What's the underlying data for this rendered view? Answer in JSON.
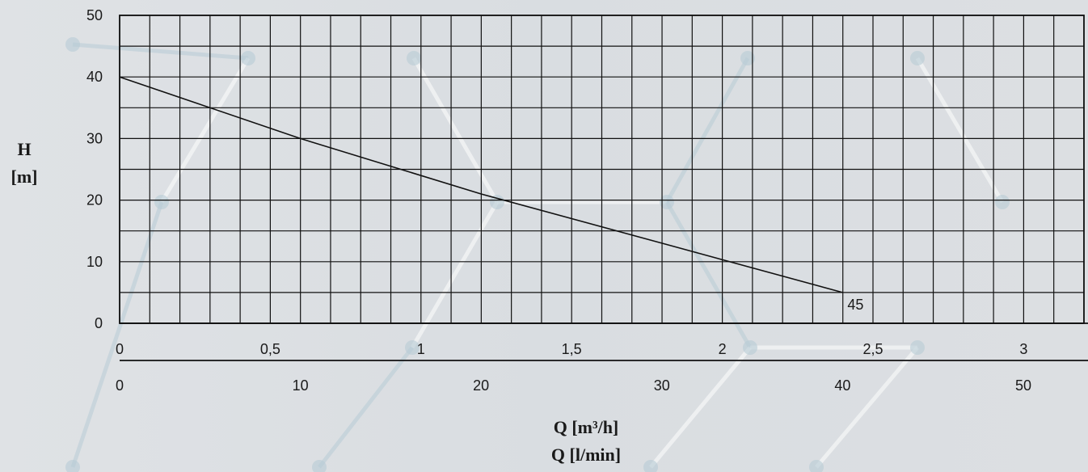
{
  "colors": {
    "background": "#dcdfe2",
    "grid": "#111111",
    "curve": "#111111",
    "decor": "#ffffff",
    "decor_blue": "#b8ccd6"
  },
  "chart_data": {
    "type": "line",
    "title": "",
    "ylabel_line1": "H",
    "ylabel_line2": "[m]",
    "xlabel_line1": "Q [m³/h]",
    "xlabel_line2": "Q [l/min]",
    "ylim": [
      0,
      50
    ],
    "yticks": [
      "0",
      "10",
      "20",
      "30",
      "40",
      "50"
    ],
    "xlim_m3h": [
      0,
      3.2
    ],
    "xticks_m3h": [
      {
        "value": 0,
        "label": "0"
      },
      {
        "value": 0.5,
        "label": "0,5"
      },
      {
        "value": 1,
        "label": "1"
      },
      {
        "value": 1.5,
        "label": "1,5"
      },
      {
        "value": 2,
        "label": "2"
      },
      {
        "value": 2.5,
        "label": "2,5"
      },
      {
        "value": 3,
        "label": "3"
      }
    ],
    "xlim_lmin": [
      0,
      53.3
    ],
    "xticks_lmin": [
      {
        "value": 0,
        "label": "0"
      },
      {
        "value": 10,
        "label": "10"
      },
      {
        "value": 20,
        "label": "20"
      },
      {
        "value": 30,
        "label": "30"
      },
      {
        "value": 40,
        "label": "40"
      },
      {
        "value": 50,
        "label": "50"
      }
    ],
    "grid": true,
    "series": [
      {
        "name": "",
        "label": "45",
        "x_lmin": [
          0,
          10,
          20,
          30,
          40
        ],
        "y": [
          40,
          30,
          21,
          13,
          5
        ]
      }
    ]
  }
}
